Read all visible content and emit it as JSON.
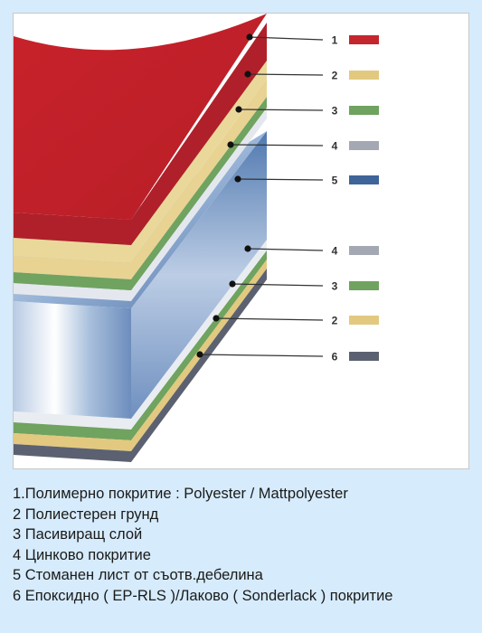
{
  "diagram": {
    "callouts": [
      {
        "number": "1",
        "swatch_color": "#c4262e"
      },
      {
        "number": "2",
        "swatch_color": "#e2c97f"
      },
      {
        "number": "3",
        "swatch_color": "#6fa35f"
      },
      {
        "number": "4",
        "swatch_color": "#a3a8b2"
      },
      {
        "number": "5",
        "swatch_color": "#3f6499"
      },
      {
        "number": "4",
        "swatch_color": "#a3a8b2"
      },
      {
        "number": "3",
        "swatch_color": "#6fa35f"
      },
      {
        "number": "2",
        "swatch_color": "#e2c97f"
      },
      {
        "number": "6",
        "swatch_color": "#5b6170"
      }
    ]
  },
  "legend": [
    "1.Полимерно покритие : Polyester / Mattpolyester",
    "2 Полиестерен грунд",
    "3 Пасивиращ слой",
    "4 Цинково покритие",
    "5 Стоманен лист от съотв.дебелина",
    "6 Епоксидно ( EP-RLS )/Лаково ( Sonderlack ) покритие"
  ]
}
